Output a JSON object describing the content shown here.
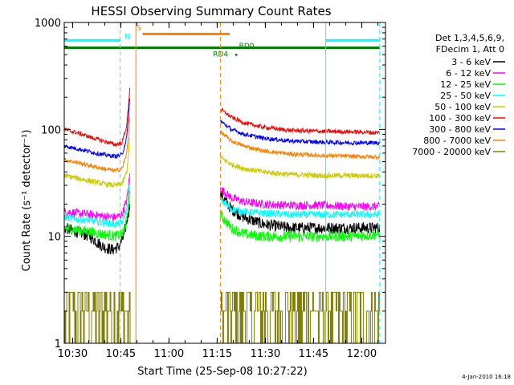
{
  "footer": {
    "date_stamp": "4-Jan-2010 16:18"
  },
  "chart_data": {
    "type": "line",
    "title": "HESSI Observing Summary Count Rates",
    "xlabel": "Start Time (25-Sep-08 10:27:22)",
    "ylabel": "Count Rate (s⁻¹ detector⁻¹)",
    "x_unit": "minutes after 10:27:22",
    "xlim": [
      0,
      100
    ],
    "ylog": true,
    "ylim": [
      1,
      1000
    ],
    "x_ticks": [
      {
        "value": 2.6,
        "label": "10:30"
      },
      {
        "value": 17.6,
        "label": "10:45"
      },
      {
        "value": 32.6,
        "label": "11:00"
      },
      {
        "value": 47.6,
        "label": "11:15"
      },
      {
        "value": 62.6,
        "label": "11:30"
      },
      {
        "value": 77.6,
        "label": "11:45"
      },
      {
        "value": 92.6,
        "label": "12:00"
      }
    ],
    "y_ticks": [
      {
        "value": 1,
        "label": "1"
      },
      {
        "value": 10,
        "label": "10"
      },
      {
        "value": 100,
        "label": "100"
      },
      {
        "value": 1000,
        "label": "1000"
      }
    ],
    "legend": {
      "position": "right",
      "header": [
        "Det 1,3,4,5,6,9,",
        "FDecim 1, Att 0"
      ],
      "entries": [
        {
          "label": "3 - 6 keV",
          "color": "#000000"
        },
        {
          "label": "6 - 12 keV",
          "color": "#ff00ff"
        },
        {
          "label": "12 - 25 keV",
          "color": "#00ff00"
        },
        {
          "label": "25 - 50 keV",
          "color": "#00ffff"
        },
        {
          "label": "50 - 100 keV",
          "color": "#cccc00"
        },
        {
          "label": "100 - 300 keV",
          "color": "#ff0000"
        },
        {
          "label": "300 - 800 keV",
          "color": "#0000ff"
        },
        {
          "label": "800 - 7000 keV",
          "color": "#ff8000"
        },
        {
          "label": "7000 - 20000 keV",
          "color": "#808000"
        }
      ]
    },
    "segments": [
      {
        "name": "pre",
        "x": [
          0,
          20.7
        ]
      },
      {
        "name": "post",
        "x": [
          48.6,
          98.2
        ]
      }
    ],
    "series": [
      {
        "name": "3 - 6 keV",
        "color": "#000000",
        "noise": 0.055,
        "pre": [
          [
            0,
            12
          ],
          [
            4,
            11
          ],
          [
            8,
            10
          ],
          [
            12,
            8
          ],
          [
            15,
            7.5
          ],
          [
            17,
            8
          ],
          [
            18.5,
            10
          ],
          [
            19.5,
            14
          ],
          [
            20.5,
            20
          ]
        ],
        "post": [
          [
            48.6,
            25
          ],
          [
            52,
            18
          ],
          [
            56,
            15
          ],
          [
            62,
            13
          ],
          [
            70,
            12
          ],
          [
            80,
            12
          ],
          [
            90,
            12
          ],
          [
            98.2,
            12
          ]
        ]
      },
      {
        "name": "6 - 12 keV",
        "color": "#ff00ff",
        "noise": 0.04,
        "pre": [
          [
            0,
            17
          ],
          [
            4,
            16.5
          ],
          [
            8,
            16
          ],
          [
            12,
            15.5
          ],
          [
            16,
            15
          ],
          [
            18,
            16
          ],
          [
            19.5,
            22
          ],
          [
            20.5,
            40
          ]
        ],
        "post": [
          [
            48.6,
            28
          ],
          [
            52,
            23
          ],
          [
            56,
            21
          ],
          [
            62,
            20
          ],
          [
            70,
            19.5
          ],
          [
            80,
            19.5
          ],
          [
            90,
            19
          ],
          [
            98.2,
            19
          ]
        ]
      },
      {
        "name": "12 - 25 keV",
        "color": "#00ff00",
        "noise": 0.05,
        "pre": [
          [
            0,
            12
          ],
          [
            4,
            11.5
          ],
          [
            8,
            11
          ],
          [
            12,
            10.5
          ],
          [
            16,
            10
          ],
          [
            18,
            10.5
          ],
          [
            19.5,
            14
          ],
          [
            20.5,
            30
          ]
        ],
        "post": [
          [
            48.6,
            16
          ],
          [
            52,
            12
          ],
          [
            56,
            10.5
          ],
          [
            62,
            10
          ],
          [
            70,
            10
          ],
          [
            80,
            10
          ],
          [
            90,
            10
          ],
          [
            98.2,
            10.5
          ]
        ]
      },
      {
        "name": "25 - 50 keV",
        "color": "#00ffff",
        "noise": 0.035,
        "pre": [
          [
            0,
            15
          ],
          [
            4,
            14.5
          ],
          [
            8,
            14
          ],
          [
            12,
            13.5
          ],
          [
            16,
            13
          ],
          [
            18,
            13.5
          ],
          [
            19.5,
            18
          ],
          [
            20.5,
            35
          ]
        ],
        "post": [
          [
            48.6,
            22
          ],
          [
            52,
            18
          ],
          [
            56,
            17
          ],
          [
            62,
            16.5
          ],
          [
            70,
            16
          ],
          [
            80,
            16
          ],
          [
            90,
            16
          ],
          [
            98.2,
            16
          ]
        ]
      },
      {
        "name": "50 - 100 keV",
        "color": "#cccc00",
        "noise": 0.025,
        "pre": [
          [
            0,
            37
          ],
          [
            4,
            35
          ],
          [
            8,
            33
          ],
          [
            12,
            31
          ],
          [
            16,
            30
          ],
          [
            18,
            31
          ],
          [
            19.5,
            40
          ],
          [
            20.5,
            90
          ]
        ],
        "post": [
          [
            48.6,
            55
          ],
          [
            52,
            47
          ],
          [
            56,
            43
          ],
          [
            62,
            40
          ],
          [
            70,
            38
          ],
          [
            80,
            37
          ],
          [
            90,
            37
          ],
          [
            98.2,
            37
          ]
        ]
      },
      {
        "name": "100 - 300 keV",
        "color": "#ff0000",
        "noise": 0.02,
        "pre": [
          [
            0,
            100
          ],
          [
            4,
            93
          ],
          [
            8,
            85
          ],
          [
            12,
            78
          ],
          [
            16,
            72
          ],
          [
            18,
            75
          ],
          [
            19.5,
            110
          ],
          [
            20.5,
            260
          ]
        ],
        "post": [
          [
            48.6,
            155
          ],
          [
            52,
            130
          ],
          [
            56,
            115
          ],
          [
            62,
            105
          ],
          [
            70,
            98
          ],
          [
            80,
            96
          ],
          [
            90,
            95
          ],
          [
            98.2,
            93
          ]
        ]
      },
      {
        "name": "300 - 800 keV",
        "color": "#0000ff",
        "noise": 0.02,
        "pre": [
          [
            0,
            70
          ],
          [
            4,
            66
          ],
          [
            8,
            62
          ],
          [
            12,
            58
          ],
          [
            16,
            56
          ],
          [
            18,
            58
          ],
          [
            19.5,
            85
          ],
          [
            20.5,
            210
          ]
        ],
        "post": [
          [
            48.6,
            120
          ],
          [
            52,
            100
          ],
          [
            56,
            90
          ],
          [
            62,
            83
          ],
          [
            70,
            78
          ],
          [
            80,
            76
          ],
          [
            90,
            75
          ],
          [
            98.2,
            75
          ]
        ]
      },
      {
        "name": "800 - 7000 keV",
        "color": "#ff8000",
        "noise": 0.02,
        "pre": [
          [
            0,
            52
          ],
          [
            4,
            49
          ],
          [
            8,
            46
          ],
          [
            12,
            43
          ],
          [
            16,
            41
          ],
          [
            18,
            43
          ],
          [
            19.5,
            60
          ],
          [
            20.5,
            140
          ]
        ],
        "post": [
          [
            48.6,
            95
          ],
          [
            52,
            78
          ],
          [
            56,
            70
          ],
          [
            62,
            63
          ],
          [
            70,
            59
          ],
          [
            80,
            57
          ],
          [
            90,
            56
          ],
          [
            98.2,
            55
          ]
        ]
      }
    ],
    "steps_series": {
      "name": "7000 - 20000 keV",
      "color": "#808000",
      "levels": [
        1,
        2,
        3
      ],
      "pre_x": [
        0,
        20.7
      ],
      "post_x": [
        48.6,
        98.2
      ]
    },
    "state_bars": [
      {
        "label": "N",
        "color": "#00ffff",
        "y": 680,
        "x": [
          0,
          17.4
        ]
      },
      {
        "label": "",
        "color": "#00ffff",
        "y": 680,
        "x": [
          81.4,
          98.2
        ]
      },
      {
        "label": "S",
        "color": "#ff8000",
        "y": 780,
        "x": [
          24.4,
          51.5
        ]
      },
      {
        "label": "",
        "color": "#008000",
        "y": 580,
        "x": [
          0,
          98.2
        ]
      }
    ],
    "vlines": [
      {
        "x": 17.4,
        "color": "#00ffff",
        "dash": true
      },
      {
        "x": 22.3,
        "color": "#ff8000",
        "dash": false
      },
      {
        "x": 48.6,
        "color": "#ff8000",
        "dash": true
      },
      {
        "x": 81.4,
        "color": "#00ffff",
        "dash": false
      },
      {
        "x": 98.2,
        "color": "#00ffff",
        "dash": true
      }
    ],
    "annotations": [
      {
        "text": "N",
        "x": 18.8,
        "y": 700,
        "color": "#00ffff"
      },
      {
        "text": "S",
        "x": 22.5,
        "y": 850,
        "color": "#ff8000"
      },
      {
        "text": "RD4",
        "x": 46.3,
        "y": 480,
        "color": "#008000"
      },
      {
        "text": "RD0",
        "x": 54.4,
        "y": 575,
        "color": "#008000"
      }
    ],
    "markers": [
      {
        "x": 53.5,
        "y": 500,
        "color": "#008000"
      }
    ]
  }
}
